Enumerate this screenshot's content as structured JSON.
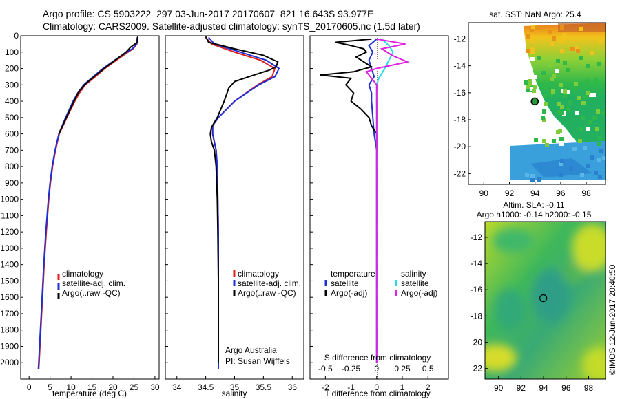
{
  "title": {
    "line1": "Argo profile: CS 5903222_297 03-Jun-2017 20170607_821 16.643S 93.977E",
    "line2": "Climatology: CARS2009. Satellite-adjusted climatology: synTS_20170605.nc (1.5d later)"
  },
  "colors": {
    "climatology": "#e02020",
    "satellite": "#1f2fd6",
    "argo": "#000000",
    "sat_salinity": "#22dde6",
    "argo_salinity": "#e022e0"
  },
  "chart_data": [
    {
      "type": "line",
      "name": "temperature-profile",
      "xlabel": "temperature (deg C)",
      "ylabel": "",
      "xlim": [
        -2,
        31
      ],
      "ylim": [
        2100,
        0
      ],
      "xticks": [
        0,
        5,
        10,
        15,
        20,
        25,
        30
      ],
      "yticks": [
        0,
        100,
        200,
        300,
        400,
        500,
        600,
        700,
        800,
        900,
        1000,
        1100,
        1200,
        1300,
        1400,
        1500,
        1600,
        1700,
        1800,
        1900,
        2000
      ],
      "legend": [
        "climatology",
        "satellite-adj. clim.",
        "Argo(..raw -QC)"
      ],
      "series": [
        {
          "name": "climatology",
          "depth": [
            10,
            50,
            80,
            100,
            150,
            200,
            250,
            300,
            350,
            400,
            500,
            600,
            700,
            800,
            900,
            1000,
            1200,
            1400,
            1600,
            1800,
            2000,
            2040
          ],
          "values": [
            25.9,
            25.7,
            24.8,
            23.6,
            20.8,
            18.1,
            15.8,
            13.4,
            12.0,
            10.9,
            9.0,
            7.2,
            6.3,
            5.6,
            5.1,
            4.7,
            4.1,
            3.6,
            3.2,
            2.8,
            2.4,
            2.3
          ]
        },
        {
          "name": "satellite-adj. clim.",
          "depth": [
            10,
            50,
            80,
            100,
            150,
            200,
            250,
            300,
            350,
            400,
            500,
            600,
            700,
            800,
            900,
            1000,
            1200,
            1400,
            1600,
            1800,
            2000,
            2040
          ],
          "values": [
            25.8,
            25.6,
            24.6,
            23.3,
            20.4,
            17.6,
            15.3,
            13.0,
            11.6,
            10.5,
            8.7,
            7.1,
            6.2,
            5.5,
            5.0,
            4.6,
            4.0,
            3.5,
            3.1,
            2.7,
            2.3,
            2.2
          ]
        },
        {
          "name": "Argo(..raw -QC)",
          "depth": [
            5,
            40,
            70,
            100,
            150,
            200,
            250,
            300,
            350,
            400,
            500,
            600
          ],
          "values": [
            25.9,
            25.8,
            24.2,
            23.1,
            20.5,
            17.9,
            15.5,
            13.2,
            11.7,
            10.7,
            8.9,
            7.1
          ]
        }
      ]
    },
    {
      "type": "line",
      "name": "salinity-profile",
      "xlabel": "salinity",
      "xlim": [
        33.8,
        36.2
      ],
      "ylim": [
        2100,
        0
      ],
      "xticks": [
        34,
        34.5,
        35,
        35.5,
        36
      ],
      "legend": [
        "climatology",
        "satellite-adj. clim.",
        "Argo(..raw -QC)"
      ],
      "annotation": [
        "Argo Australia",
        "PI: Susan Wijffels"
      ],
      "series": [
        {
          "name": "climatology",
          "depth": [
            10,
            50,
            100,
            150,
            200,
            250,
            300,
            400,
            500,
            550,
            600,
            700,
            800,
            1000,
            1200,
            1500,
            1800,
            2000,
            2040
          ],
          "values": [
            34.5,
            34.6,
            35.0,
            35.45,
            35.7,
            35.65,
            35.4,
            35.0,
            34.72,
            34.62,
            34.62,
            34.68,
            34.7,
            34.71,
            34.72,
            34.72,
            34.72,
            34.72,
            34.72
          ]
        },
        {
          "name": "satellite-adj. clim.",
          "depth": [
            10,
            50,
            100,
            150,
            200,
            250,
            300,
            400,
            500,
            550,
            600,
            700,
            800,
            1000,
            1200,
            1500,
            1800,
            2000,
            2040
          ],
          "values": [
            34.55,
            34.65,
            35.1,
            35.55,
            35.77,
            35.7,
            35.42,
            35.0,
            34.72,
            34.62,
            34.62,
            34.68,
            34.7,
            34.71,
            34.72,
            34.72,
            34.72,
            34.72,
            34.72
          ]
        },
        {
          "name": "Argo(..raw -QC)",
          "depth": [
            5,
            40,
            80,
            120,
            160,
            190,
            210,
            250,
            280,
            320,
            400,
            500,
            560,
            600,
            650,
            700,
            800,
            1000,
            1200,
            1500,
            1800,
            2000
          ],
          "values": [
            34.5,
            34.55,
            35.0,
            35.5,
            35.75,
            35.72,
            35.6,
            35.25,
            35.0,
            34.9,
            34.82,
            34.7,
            34.6,
            34.58,
            34.6,
            34.65,
            34.68,
            34.7,
            34.71,
            34.72,
            34.72,
            34.72
          ]
        }
      ]
    },
    {
      "type": "line",
      "name": "difference-profile",
      "xlabel": "T difference from climatology",
      "xlabel_top": "S difference from climatology",
      "xlim": [
        -2.6,
        2.8
      ],
      "ylim": [
        2100,
        0
      ],
      "xticks": [
        -2,
        -1,
        0,
        1,
        2
      ],
      "xticks_top": [
        "-0.5",
        "-0.25",
        "0",
        "0.25",
        "0.5"
      ],
      "legend_left_title": "temperature",
      "legend_right_title": "salinity",
      "legend_left": [
        "satellite",
        "Argo(-adj)"
      ],
      "legend_right": [
        "satellite",
        "Argo(-adj)"
      ],
      "series": [
        {
          "name": "temperature satellite",
          "depth": [
            20,
            60,
            100,
            150,
            200,
            250,
            300,
            350,
            400,
            500,
            600,
            700,
            800,
            1000,
            1500,
            2000
          ],
          "values": [
            0.0,
            -0.3,
            -0.15,
            -0.3,
            -0.2,
            -0.1,
            -0.3,
            -0.2,
            -0.2,
            -0.15,
            -0.1,
            0.0,
            0.0,
            0.0,
            0.0,
            0.0
          ]
        },
        {
          "name": "temperature Argo(-adj)",
          "depth": [
            20,
            40,
            60,
            80,
            100,
            130,
            160,
            190,
            220,
            240,
            260,
            300,
            350,
            400,
            450,
            500,
            550,
            600,
            700
          ],
          "values": [
            -0.2,
            -1.6,
            -1.0,
            -0.5,
            -0.4,
            -0.8,
            -0.5,
            -0.2,
            -0.9,
            -2.2,
            -1.0,
            -1.2,
            -0.9,
            -1.0,
            -0.6,
            -0.3,
            -0.2,
            0.0,
            0.0
          ]
        },
        {
          "name": "salinity satellite",
          "depth": [
            20,
            60,
            100,
            150,
            200,
            260,
            300,
            400,
            500,
            700,
            1000,
            1500,
            2000
          ],
          "values": [
            0.05,
            0.12,
            0.16,
            0.12,
            0.08,
            0.02,
            0.0,
            0.0,
            0.0,
            0.0,
            0.0,
            0.0,
            0.0
          ]
        },
        {
          "name": "salinity Argo(-adj)",
          "depth": [
            20,
            50,
            80,
            120,
            160,
            200,
            220,
            260,
            300,
            400,
            500,
            700,
            1000,
            1500,
            2000
          ],
          "values": [
            0.0,
            0.28,
            0.05,
            0.15,
            0.3,
            0.0,
            -0.1,
            -0.05,
            0.0,
            0.0,
            0.0,
            0.0,
            0.0,
            0.0,
            0.0
          ]
        }
      ]
    },
    {
      "type": "heatmap",
      "name": "sst-map",
      "title": "sat. SST: NaN Argo: 25.4",
      "xticks": [
        90,
        92,
        94,
        96,
        98
      ],
      "yticks": [
        -12,
        -14,
        -16,
        -18,
        -20,
        -22
      ],
      "xlim": [
        88.8,
        99.5
      ],
      "ylim": [
        -22.8,
        -10.8
      ],
      "marker": {
        "lon": 93.977,
        "lat": -16.643
      }
    },
    {
      "type": "heatmap",
      "name": "sla-map",
      "title_line1": "Altim. SLA: -0.11",
      "title_line2": "Argo h1000: -0.14 h2000: -0.15",
      "xticks": [
        90,
        92,
        94,
        96,
        98
      ],
      "yticks": [
        -12,
        -14,
        -16,
        -18,
        -20,
        -22
      ],
      "xlim": [
        88.8,
        99.5
      ],
      "ylim": [
        -22.8,
        -10.8
      ],
      "marker": {
        "lon": 93.977,
        "lat": -16.643
      }
    }
  ],
  "side_label": "©IMOS 12-Jun-2017 20:40:50"
}
